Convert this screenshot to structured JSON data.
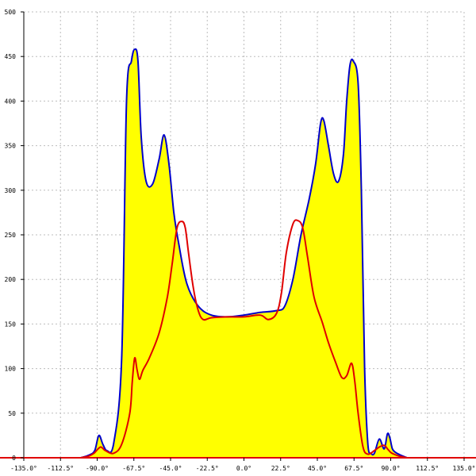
{
  "chart_data": {
    "type": "area",
    "title": "",
    "xlabel": "",
    "ylabel": "",
    "xlim": [
      -135,
      135
    ],
    "ylim": [
      0,
      500
    ],
    "grid": true,
    "x_ticks": [
      -135,
      -112.5,
      -90,
      -67.5,
      -45,
      -22.5,
      0,
      22.5,
      45,
      67.5,
      90,
      112.5,
      135
    ],
    "x_tick_labels": [
      "-135.0°",
      "-112.5°",
      "-90.0°",
      "-67.5°",
      "-45.0°",
      "-22.5°",
      "0.0°",
      "22.5°",
      "45.0°",
      "67.5°",
      "90.0°",
      "112.5°",
      "135.0°"
    ],
    "y_ticks": [
      0,
      50,
      100,
      150,
      200,
      250,
      300,
      350,
      400,
      450,
      500
    ],
    "y_tick_labels": [
      "0",
      "50",
      "100",
      "150",
      "200",
      "250",
      "300",
      "350",
      "400",
      "450",
      "500"
    ],
    "series": [
      {
        "color": "#0000cc",
        "fill": "#ffff00",
        "x": [
          -100,
          -95,
          -91.5,
          -89,
          -86.5,
          -84,
          -80,
          -75,
          -72,
          -69,
          -67,
          -65,
          -63,
          -60,
          -56,
          -52,
          -49,
          -46,
          -43,
          -40,
          -35,
          -28,
          -20,
          -10,
          0,
          10,
          20,
          25,
          30,
          35,
          40,
          44,
          47,
          49,
          52,
          55,
          58,
          61,
          63,
          65,
          67,
          70,
          72,
          74,
          76,
          78,
          80,
          83,
          86,
          88,
          89.5,
          91,
          93,
          96,
          100
        ],
        "y": [
          0,
          3,
          8,
          25,
          15,
          8,
          15,
          110,
          400,
          445,
          458,
          445,
          360,
          310,
          307,
          335,
          362,
          330,
          275,
          240,
          195,
          170,
          160,
          158,
          160,
          163,
          165,
          170,
          200,
          250,
          290,
          330,
          375,
          378,
          348,
          318,
          310,
          340,
          400,
          440,
          445,
          420,
          300,
          100,
          15,
          5,
          5,
          21,
          10,
          27,
          22,
          10,
          6,
          3,
          0
        ]
      },
      {
        "color": "#e00000",
        "fill": "none",
        "x": [
          -100,
          -95,
          -92,
          -88,
          -85,
          -80,
          -75,
          -70,
          -68.5,
          -67,
          -65.5,
          -64,
          -62,
          -58,
          -52,
          -47,
          -44,
          -41,
          -38,
          -36,
          -34,
          -31,
          -28,
          -25,
          -20,
          -10,
          0,
          10,
          15,
          20,
          23,
          26,
          30,
          33,
          36,
          39,
          43,
          48,
          52,
          56,
          60,
          63,
          66,
          68,
          70,
          73,
          76,
          80,
          83,
          86,
          88,
          90,
          92,
          95,
          100
        ],
        "y": [
          0,
          2,
          5,
          12,
          8,
          5,
          15,
          50,
          85,
          112,
          98,
          88,
          98,
          112,
          140,
          180,
          218,
          258,
          265,
          258,
          230,
          190,
          165,
          155,
          157,
          158,
          158,
          160,
          155,
          162,
          185,
          230,
          262,
          266,
          258,
          225,
          180,
          152,
          128,
          108,
          90,
          92,
          106,
          85,
          50,
          12,
          4,
          8,
          12,
          14,
          10,
          6,
          4,
          2,
          0
        ]
      }
    ]
  }
}
